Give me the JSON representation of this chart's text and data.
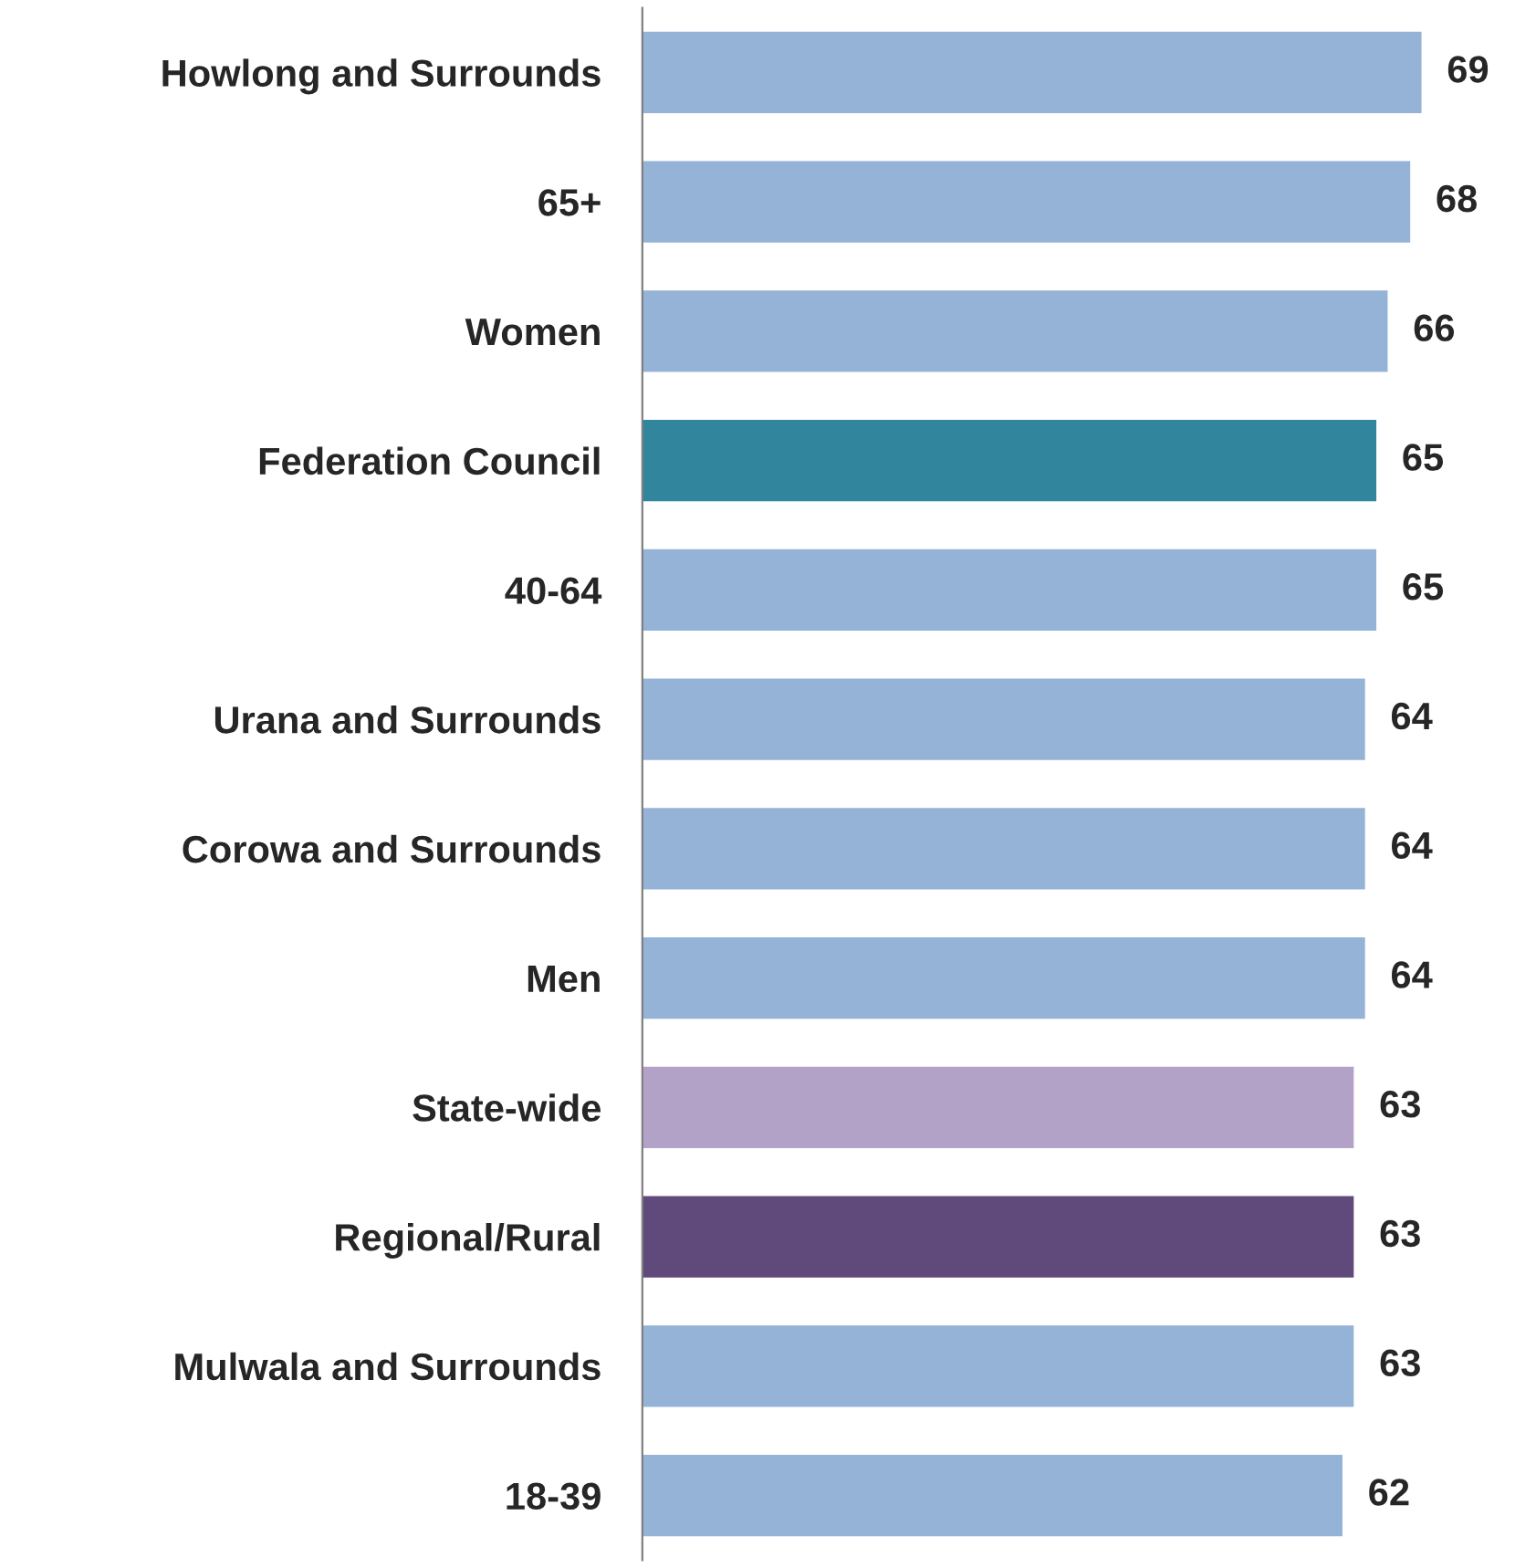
{
  "chart_data": {
    "type": "bar",
    "orientation": "horizontal",
    "data_labels": true,
    "grid": false,
    "legend": false,
    "categories": [
      "Howlong and Surrounds",
      "65+",
      "Women",
      "Federation Council",
      "40-64",
      "Urana and Surrounds",
      "Corowa and Surrounds",
      "Men",
      "State-wide",
      "Regional/Rural",
      "Mulwala and Surrounds",
      "18-39"
    ],
    "values": [
      69,
      68,
      66,
      65,
      65,
      64,
      64,
      64,
      63,
      63,
      63,
      62
    ],
    "colors": [
      "#95b3d7",
      "#95b3d7",
      "#95b3d7",
      "#31859c",
      "#95b3d7",
      "#95b3d7",
      "#95b3d7",
      "#95b3d7",
      "#b3a2c7",
      "#604a7b",
      "#95b3d7",
      "#95b3d7"
    ]
  }
}
